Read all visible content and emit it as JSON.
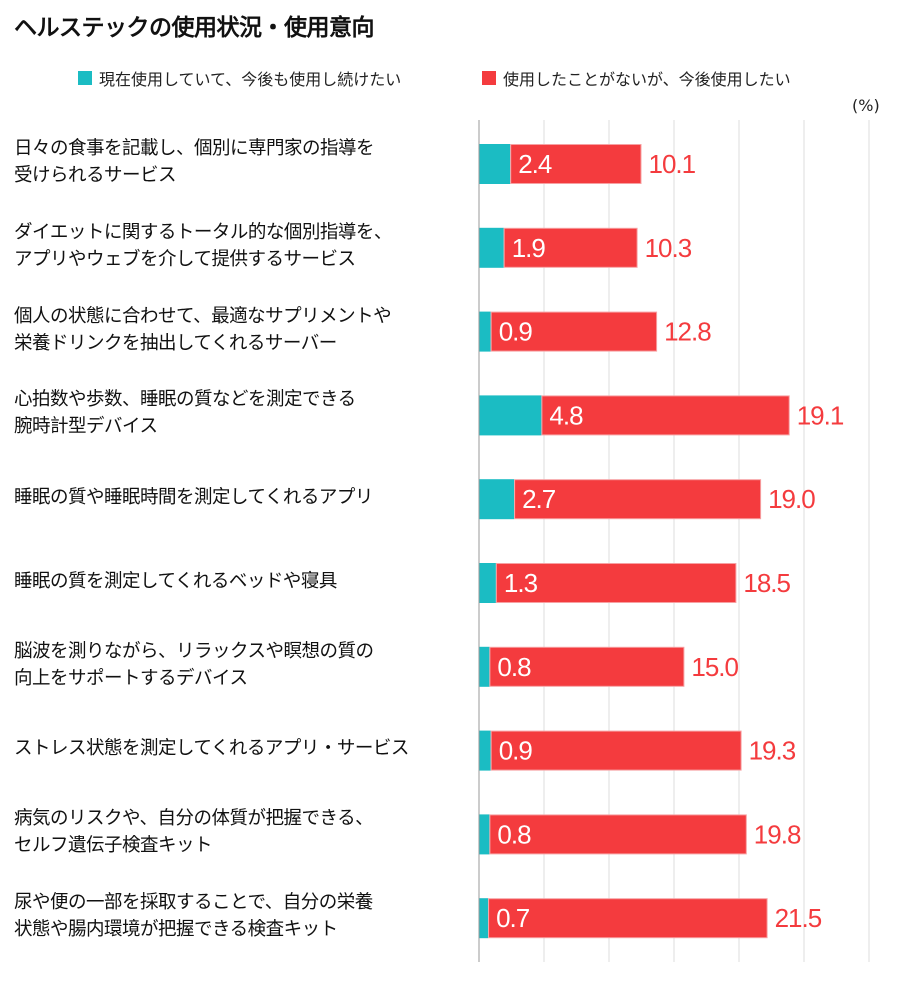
{
  "chart_data": {
    "type": "bar",
    "orientation": "horizontal",
    "stacked": true,
    "title": "ヘルステックの使用状況・使用意向",
    "unit_label": "(%)",
    "xlim": [
      0,
      30
    ],
    "grid": true,
    "legend_placement": "top",
    "categories": [
      "日々の食事を記載し、個別に専門家の指導を\n受けられるサービス",
      "ダイエットに関するトータル的な個別指導を、\nアプリやウェブを介して提供するサービス",
      "個人の状態に合わせて、最適なサプリメントや\n栄養ドリンクを抽出してくれるサーバー",
      "心拍数や歩数、睡眠の質などを測定できる\n腕時計型デバイス",
      "睡眠の質や睡眠時間を測定してくれるアプリ",
      "睡眠の質を測定してくれるベッドや寝具",
      "脳波を測りながら、リラックスや瞑想の質の\n向上をサポートするデバイス",
      "ストレス状態を測定してくれるアプリ・サービス",
      "病気のリスクや、自分の体質が把握できる、\nセルフ遺伝子検査キット",
      "尿や便の一部を採取することで、自分の栄養\n状態や腸内環境が把握できる検査キット"
    ],
    "series": [
      {
        "name": "現在使用していて、今後も使用し続けたい",
        "color": "#1bbcc3",
        "values": [
          2.4,
          1.9,
          0.9,
          4.8,
          2.7,
          1.3,
          0.8,
          0.9,
          0.8,
          0.7
        ]
      },
      {
        "name": "使用したことがないが、今後使用したい",
        "color": "#f43b3e",
        "values": [
          10.1,
          10.3,
          12.8,
          19.1,
          19.0,
          18.5,
          15.0,
          19.3,
          19.8,
          21.5
        ]
      }
    ]
  }
}
